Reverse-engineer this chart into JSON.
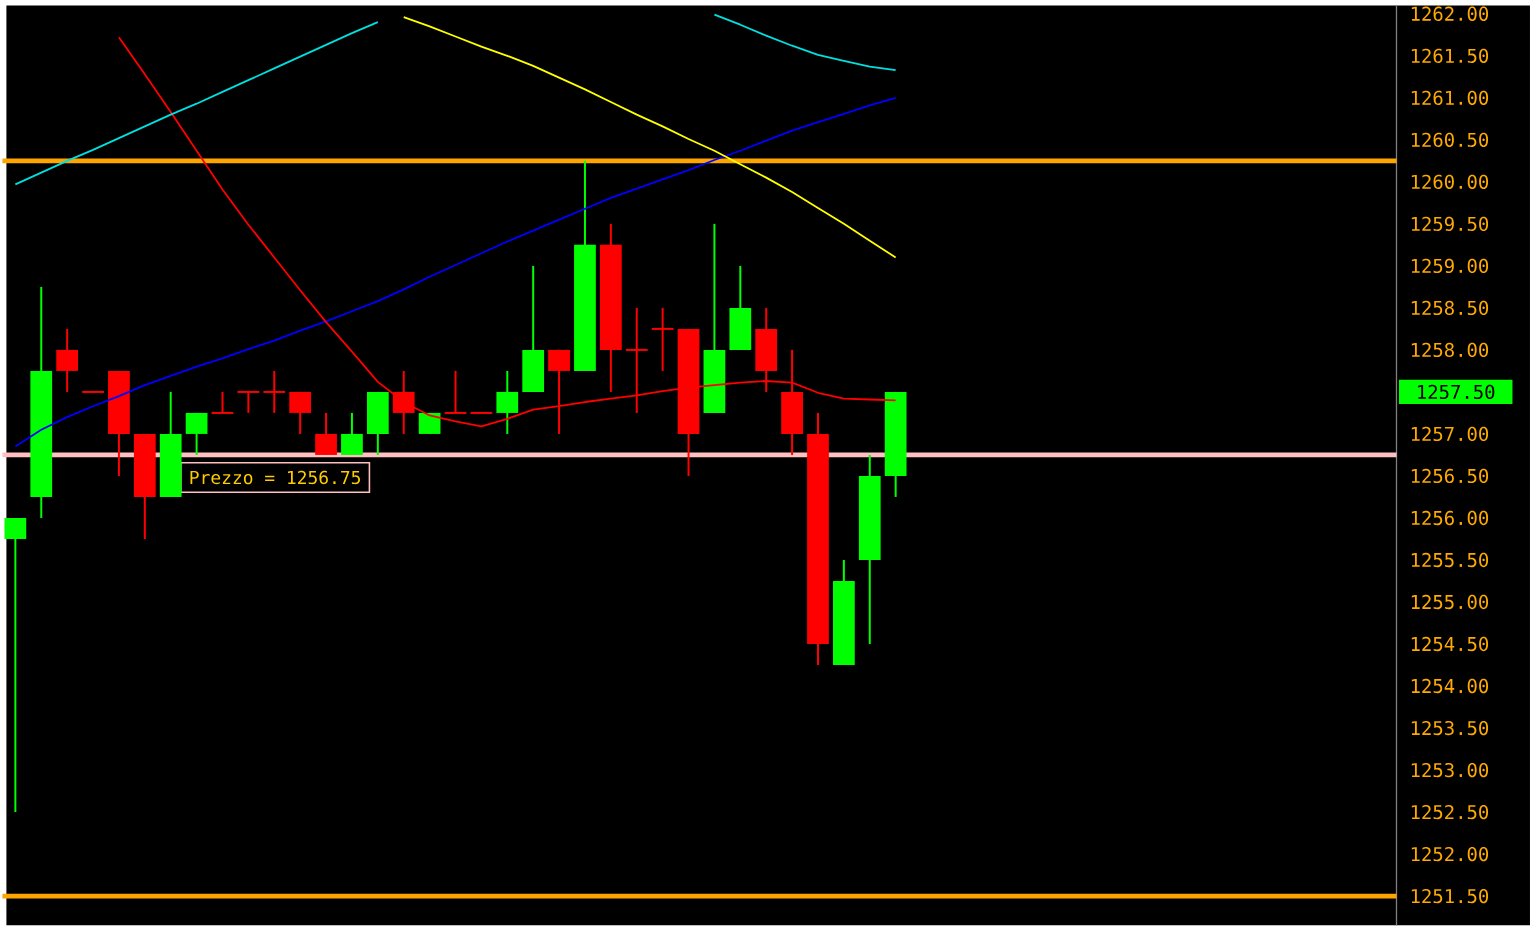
{
  "chart_data": {
    "type": "candlestick",
    "categories": [
      null,
      null,
      null,
      null,
      null,
      null,
      null,
      null,
      null,
      null,
      null,
      null,
      null,
      null,
      null,
      null,
      null,
      null,
      null,
      null,
      null,
      null,
      null,
      null,
      null,
      null,
      null,
      null,
      null,
      null,
      null,
      null,
      null,
      null,
      null
    ],
    "ohlc": [
      [
        1255.75,
        1256.0,
        1252.5,
        1256.0
      ],
      [
        1256.25,
        1258.75,
        1256.0,
        1257.75
      ],
      [
        1258.0,
        1258.25,
        1257.5,
        1257.75
      ],
      [
        1257.5,
        1257.5,
        1257.5,
        1257.5
      ],
      [
        1257.75,
        1257.75,
        1256.5,
        1257.0
      ],
      [
        1257.0,
        1257.0,
        1255.75,
        1256.25
      ],
      [
        1256.25,
        1257.5,
        1256.25,
        1257.0
      ],
      [
        1257.0,
        1257.25,
        1256.75,
        1257.25
      ],
      [
        1257.25,
        1257.5,
        1257.25,
        1257.25
      ],
      [
        1257.5,
        1257.5,
        1257.25,
        1257.5
      ],
      [
        1257.5,
        1257.75,
        1257.25,
        1257.5
      ],
      [
        1257.5,
        1257.5,
        1257.0,
        1257.25
      ],
      [
        1257.0,
        1257.25,
        1256.75,
        1256.75
      ],
      [
        1256.75,
        1257.25,
        1256.75,
        1257.0
      ],
      [
        1257.0,
        1257.5,
        1256.75,
        1257.5
      ],
      [
        1257.5,
        1257.75,
        1257.0,
        1257.25
      ],
      [
        1257.0,
        1257.25,
        1257.0,
        1257.25
      ],
      [
        1257.25,
        1257.75,
        1257.25,
        1257.25
      ],
      [
        1257.25,
        1257.25,
        1257.25,
        1257.25
      ],
      [
        1257.25,
        1257.75,
        1257.0,
        1257.5
      ],
      [
        1257.5,
        1259.0,
        1257.5,
        1258.0
      ],
      [
        1258.0,
        1258.0,
        1257.0,
        1257.75
      ],
      [
        1257.75,
        1260.25,
        1257.75,
        1259.25
      ],
      [
        1259.25,
        1259.5,
        1257.5,
        1258.0
      ],
      [
        1258.0,
        1258.5,
        1257.25,
        1258.0
      ],
      [
        1258.25,
        1258.5,
        1257.75,
        1258.25
      ],
      [
        1258.25,
        1258.25,
        1256.5,
        1257.0
      ],
      [
        1257.25,
        1259.5,
        1257.25,
        1258.0
      ],
      [
        1258.0,
        1259.0,
        1258.0,
        1258.5
      ],
      [
        1258.25,
        1258.5,
        1257.5,
        1257.75
      ],
      [
        1257.5,
        1258.0,
        1256.75,
        1257.0
      ],
      [
        1257.0,
        1257.25,
        1254.25,
        1254.5
      ],
      [
        1254.25,
        1255.5,
        1254.25,
        1255.25
      ],
      [
        1255.5,
        1256.75,
        1254.5,
        1256.5
      ],
      [
        1256.5,
        1257.5,
        1256.25,
        1257.5
      ]
    ],
    "colors": [
      "#00ff00",
      "#00ff00",
      "#ff0000",
      "#ff0000",
      "#ff0000",
      "#ff0000",
      "#00ff00",
      "#00ff00",
      "#ff0000",
      "#ff0000",
      "#ff0000",
      "#ff0000",
      "#ff0000",
      "#00ff00",
      "#00ff00",
      "#ff0000",
      "#00ff00",
      "#ff0000",
      "#ff0000",
      "#00ff00",
      "#00ff00",
      "#ff0000",
      "#00ff00",
      "#ff0000",
      "#ff0000",
      "#ff0000",
      "#ff0000",
      "#00ff00",
      "#00ff00",
      "#ff0000",
      "#ff0000",
      "#ff0000",
      "#00ff00",
      "#00ff00",
      "#00ff00"
    ],
    "series": [
      {
        "type": "line",
        "color": "#0000ff",
        "values": [
          1256.85,
          1257.05,
          1257.2,
          1257.33,
          1257.45,
          1257.58,
          1257.69,
          1257.8,
          1257.9,
          1258.01,
          1258.11,
          1258.23,
          1258.34,
          1258.46,
          1258.58,
          1258.72,
          1258.87,
          1259.01,
          1259.15,
          1259.29,
          1259.42,
          1259.55,
          1259.68,
          1259.81,
          1259.92,
          1260.03,
          1260.14,
          1260.26,
          1260.37,
          1260.49,
          1260.61,
          1260.71,
          1260.81,
          1260.91,
          1261.0
        ]
      },
      {
        "type": "line",
        "color": "#ff0000",
        "values": [
          null,
          null,
          null,
          null,
          1261.72,
          1261.28,
          1260.83,
          1260.37,
          1259.91,
          1259.49,
          1259.1,
          1258.71,
          1258.33,
          1257.98,
          1257.62,
          1257.38,
          1257.22,
          1257.15,
          1257.09,
          1257.18,
          1257.29,
          1257.33,
          1257.38,
          1257.42,
          1257.46,
          1257.51,
          1257.55,
          1257.58,
          1257.61,
          1257.63,
          1257.61,
          1257.49,
          1257.42,
          1257.41,
          1257.4
        ]
      },
      {
        "type": "line",
        "color": "#ffff00",
        "values": [
          null,
          null,
          null,
          null,
          null,
          null,
          null,
          null,
          null,
          null,
          null,
          null,
          null,
          null,
          null,
          1261.96,
          1261.85,
          1261.73,
          1261.61,
          1261.5,
          1261.38,
          1261.24,
          1261.1,
          1260.95,
          1260.8,
          1260.66,
          1260.51,
          1260.37,
          1260.21,
          1260.05,
          1259.88,
          1259.69,
          1259.5,
          1259.3,
          1259.1
        ]
      },
      {
        "type": "line",
        "color": "#00e0e0",
        "values": [
          1259.97,
          1260.11,
          1260.25,
          1260.38,
          1260.52,
          1260.66,
          1260.8,
          1260.93,
          1261.07,
          1261.21,
          1261.35,
          1261.49,
          1261.63,
          1261.77,
          1261.9,
          null,
          null,
          null,
          null,
          null,
          null,
          null,
          null,
          null,
          null,
          null,
          null,
          1261.99,
          1261.87,
          1261.74,
          1261.62,
          1261.51,
          1261.44,
          1261.37,
          1261.33
        ]
      }
    ],
    "ylim": [
      1251.15,
      1262.1
    ],
    "yticks": [
      {
        "value": 1251.5,
        "label": "1251.50"
      },
      {
        "value": 1252.0,
        "label": "1252.00"
      },
      {
        "value": 1252.5,
        "label": "1252.50"
      },
      {
        "value": 1253.0,
        "label": "1253.00"
      },
      {
        "value": 1253.5,
        "label": "1253.50"
      },
      {
        "value": 1254.0,
        "label": "1254.00"
      },
      {
        "value": 1254.5,
        "label": "1254.50"
      },
      {
        "value": 1255.0,
        "label": "1255.00"
      },
      {
        "value": 1255.5,
        "label": "1255.50"
      },
      {
        "value": 1256.0,
        "label": "1256.00"
      },
      {
        "value": 1256.5,
        "label": "1256.50"
      },
      {
        "value": 1257.0,
        "label": "1257.00"
      },
      {
        "value": 1258.0,
        "label": "1258.00"
      },
      {
        "value": 1258.5,
        "label": "1258.50"
      },
      {
        "value": 1259.0,
        "label": "1259.00"
      },
      {
        "value": 1259.5,
        "label": "1259.50"
      },
      {
        "value": 1260.0,
        "label": "1260.00"
      },
      {
        "value": 1260.5,
        "label": "1260.50"
      },
      {
        "value": 1261.0,
        "label": "1261.00"
      },
      {
        "value": 1261.5,
        "label": "1261.50"
      },
      {
        "value": 1262.0,
        "label": "1262.00"
      }
    ],
    "tick_labels": "y",
    "ref_lines": [
      {
        "axis": "y",
        "value": 1260.25,
        "color": "#ffa500"
      },
      {
        "axis": "y",
        "value": 1256.75,
        "color": "#ffc0c0",
        "label": "Prezzo = 1256.75"
      },
      {
        "axis": "y",
        "value": 1251.5,
        "color": "#ffa500"
      }
    ],
    "annotations": [
      "1257.50"
    ]
  }
}
